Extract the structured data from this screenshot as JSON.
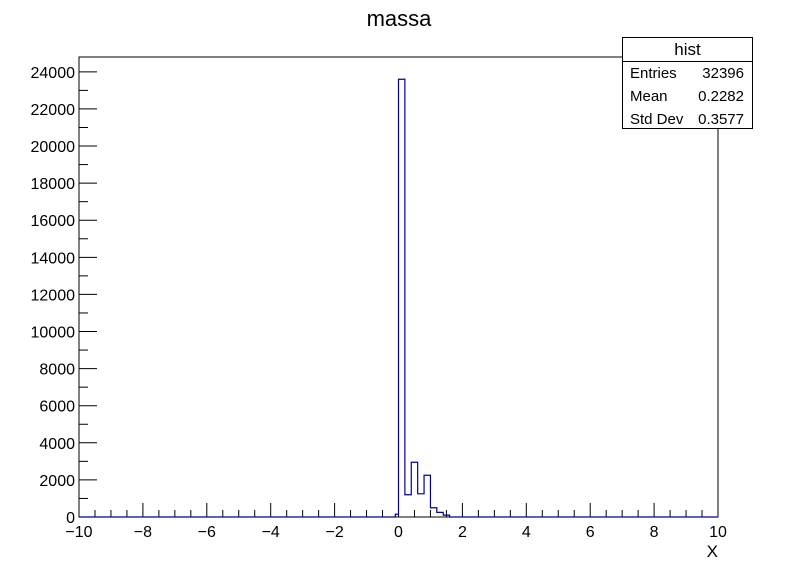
{
  "chart_data": {
    "type": "bar",
    "title": "massa",
    "xlabel": "X",
    "ylabel": "",
    "xlim": [
      -10,
      10
    ],
    "ylim": [
      0,
      24800
    ],
    "grid": false,
    "x_ticks": [
      -10,
      -8,
      -6,
      -4,
      -2,
      0,
      2,
      4,
      6,
      8,
      10
    ],
    "y_ticks": [
      0,
      2000,
      4000,
      6000,
      8000,
      10000,
      12000,
      14000,
      16000,
      18000,
      20000,
      22000,
      24000
    ],
    "bins": [
      {
        "x0": -0.1,
        "x1": 0.0,
        "count": 150
      },
      {
        "x0": 0.0,
        "x1": 0.2,
        "count": 23600
      },
      {
        "x0": 0.2,
        "x1": 0.4,
        "count": 1200
      },
      {
        "x0": 0.4,
        "x1": 0.6,
        "count": 2950
      },
      {
        "x0": 0.6,
        "x1": 0.8,
        "count": 1250
      },
      {
        "x0": 0.8,
        "x1": 1.0,
        "count": 2250
      },
      {
        "x0": 1.0,
        "x1": 1.2,
        "count": 500
      },
      {
        "x0": 1.2,
        "x1": 1.4,
        "count": 250
      },
      {
        "x0": 1.4,
        "x1": 1.6,
        "count": 100
      }
    ],
    "line_color": "#000099"
  },
  "stats": {
    "title": "hist",
    "rows": [
      {
        "label": "Entries",
        "value": "32396"
      },
      {
        "label": "Mean",
        "value": "0.2282"
      },
      {
        "label": "Std Dev",
        "value": "0.3577"
      }
    ]
  }
}
